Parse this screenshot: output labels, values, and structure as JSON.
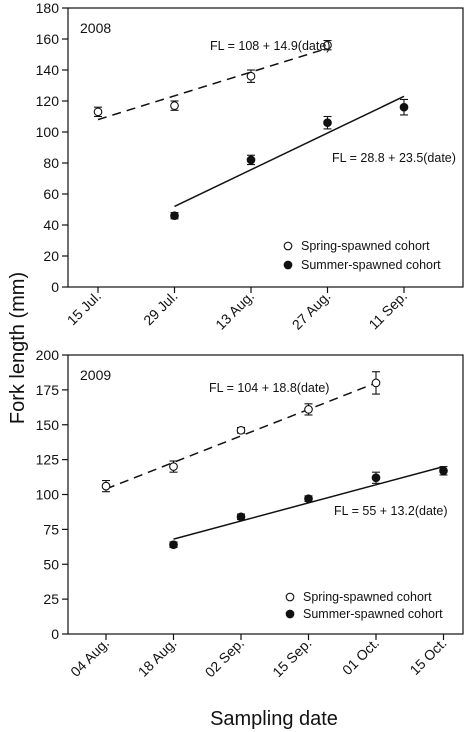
{
  "ylabel": "Fork length (mm)",
  "xlabel": "Sampling date",
  "chart_data": [
    {
      "type": "scatter",
      "panel_label": "2008",
      "categories": [
        "15 Jul.",
        "29 Jul.",
        "13 Aug.",
        "27 Aug.",
        "11 Sep."
      ],
      "ylim": [
        0,
        180
      ],
      "yticks": [
        0,
        20,
        40,
        60,
        80,
        100,
        120,
        140,
        160,
        180
      ],
      "series": [
        {
          "name": "Spring-spawned cohort",
          "marker": "open-circle",
          "points": [
            {
              "x": "15 Jul.",
              "y": 113,
              "err": 3
            },
            {
              "x": "29 Jul.",
              "y": 117,
              "err": 3
            },
            {
              "x": "13 Aug.",
              "y": 136,
              "err": 4
            },
            {
              "x": "27 Aug.",
              "y": 156,
              "err": 3
            }
          ],
          "fit": {
            "equation": "FL = 108 + 14.9(date)",
            "style": "dashed",
            "x_start": "15 Jul.",
            "x_end": "27 Aug.",
            "y_start": 108,
            "y_end": 154
          }
        },
        {
          "name": "Summer-spawned cohort",
          "marker": "filled-circle",
          "points": [
            {
              "x": "29 Jul.",
              "y": 46,
              "err": 2
            },
            {
              "x": "13 Aug.",
              "y": 82,
              "err": 3
            },
            {
              "x": "27 Aug.",
              "y": 106,
              "err": 4
            },
            {
              "x": "11 Sep.",
              "y": 116,
              "err": 5
            }
          ],
          "fit": {
            "equation": "FL = 28.8 + 23.5(date)",
            "style": "solid",
            "x_start": "29 Jul.",
            "x_end": "11 Sep.",
            "y_start": 52,
            "y_end": 123
          }
        }
      ],
      "legend": "bottom-right"
    },
    {
      "type": "scatter",
      "panel_label": "2009",
      "categories": [
        "04 Aug.",
        "18 Aug.",
        "02 Sep.",
        "15 Sep.",
        "01 Oct.",
        "15 Oct."
      ],
      "ylim": [
        0,
        200
      ],
      "yticks": [
        0,
        25,
        50,
        75,
        100,
        125,
        150,
        175,
        200
      ],
      "series": [
        {
          "name": "Spring-spawned cohort",
          "marker": "open-circle",
          "points": [
            {
              "x": "04 Aug.",
              "y": 106,
              "err": 4
            },
            {
              "x": "18 Aug.",
              "y": 120,
              "err": 4
            },
            {
              "x": "02 Sep.",
              "y": 146,
              "err": 2
            },
            {
              "x": "15 Sep.",
              "y": 161,
              "err": 4
            },
            {
              "x": "01 Oct.",
              "y": 180,
              "err": 8
            }
          ],
          "fit": {
            "equation": "FL = 104 + 18.8(date)",
            "style": "dashed",
            "x_start": "04 Aug.",
            "x_end": "01 Oct.",
            "y_start": 104,
            "y_end": 180
          }
        },
        {
          "name": "Summer-spawned cohort",
          "marker": "filled-circle",
          "points": [
            {
              "x": "18 Aug.",
              "y": 64,
              "err": 2
            },
            {
              "x": "02 Sep.",
              "y": 84,
              "err": 2
            },
            {
              "x": "15 Sep.",
              "y": 97,
              "err": 2
            },
            {
              "x": "01 Oct.",
              "y": 112,
              "err": 4
            },
            {
              "x": "15 Oct.",
              "y": 117,
              "err": 3
            }
          ],
          "fit": {
            "equation": "FL = 55 + 13.2(date)",
            "style": "solid",
            "x_start": "18 Aug.",
            "x_end": "15 Oct.",
            "y_start": 68,
            "y_end": 120
          }
        }
      ],
      "legend": "bottom-right"
    }
  ]
}
